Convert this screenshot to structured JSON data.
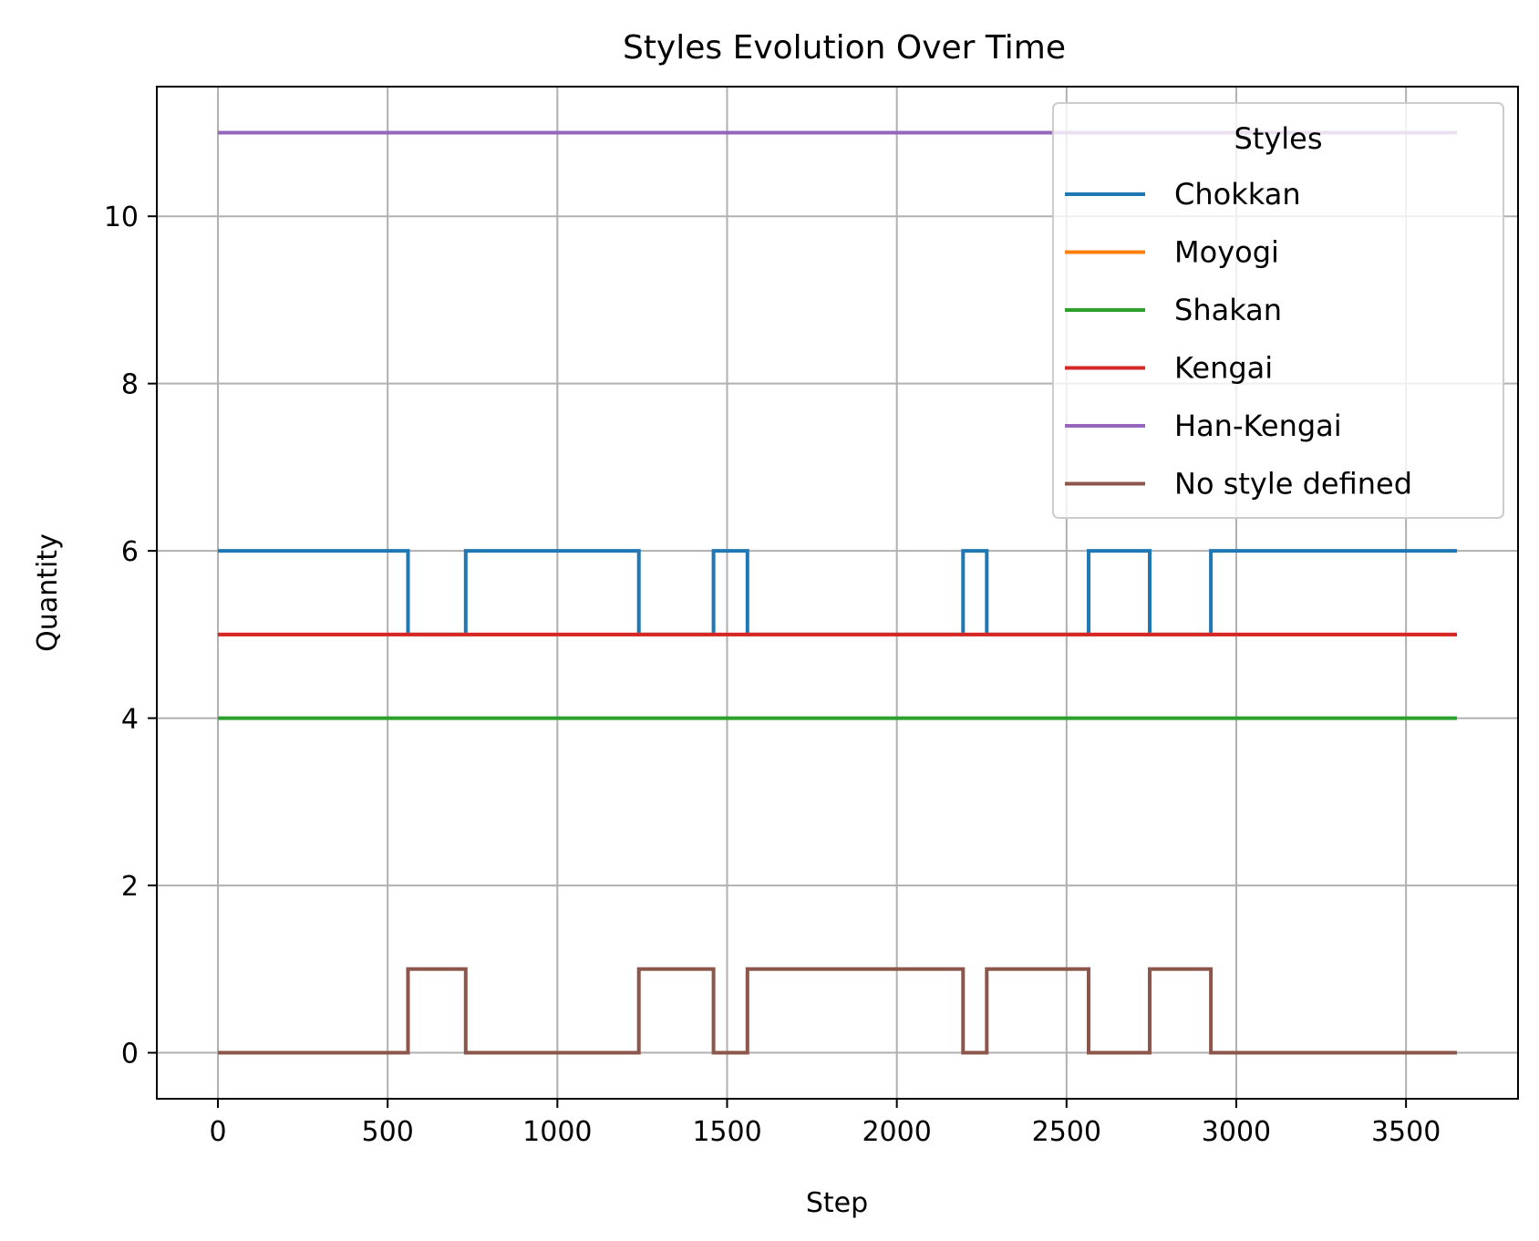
{
  "chart_data": {
    "type": "line",
    "title": "Styles Evolution Over Time",
    "xlabel": "Step",
    "ylabel": "Quantity",
    "xlim": [
      -180,
      3830
    ],
    "ylim": [
      -0.55,
      11.55
    ],
    "xticks": [
      0,
      500,
      1000,
      1500,
      2000,
      2500,
      3000,
      3500
    ],
    "yticks": [
      0,
      2,
      4,
      6,
      8,
      10
    ],
    "grid": true,
    "legend": {
      "title": "Styles",
      "placement": "top-right"
    },
    "step_style": "post",
    "series": [
      {
        "name": "Chokkan",
        "color": "#1f77b4",
        "points": [
          [
            0,
            6
          ],
          [
            560,
            5
          ],
          [
            730,
            6
          ],
          [
            1240,
            5
          ],
          [
            1460,
            6
          ],
          [
            1560,
            5
          ],
          [
            2195,
            6
          ],
          [
            2265,
            5
          ],
          [
            2565,
            6
          ],
          [
            2745,
            5
          ],
          [
            2925,
            6
          ],
          [
            3650,
            6
          ]
        ]
      },
      {
        "name": "Moyogi",
        "color": "#ff7f0e",
        "points": [
          [
            0,
            5
          ],
          [
            3650,
            5
          ]
        ]
      },
      {
        "name": "Shakan",
        "color": "#2ca02c",
        "points": [
          [
            0,
            4
          ],
          [
            3650,
            4
          ]
        ]
      },
      {
        "name": "Kengai",
        "color": "#d62728",
        "points": [
          [
            0,
            5
          ],
          [
            3650,
            5
          ]
        ]
      },
      {
        "name": "Han-Kengai",
        "color": "#9467bd",
        "points": [
          [
            0,
            11
          ],
          [
            3650,
            11
          ]
        ]
      },
      {
        "name": "No style defined",
        "color": "#8c564b",
        "points": [
          [
            0,
            0
          ],
          [
            560,
            1
          ],
          [
            730,
            0
          ],
          [
            1240,
            1
          ],
          [
            1460,
            0
          ],
          [
            1560,
            1
          ],
          [
            2195,
            0
          ],
          [
            2265,
            1
          ],
          [
            2565,
            0
          ],
          [
            2745,
            1
          ],
          [
            2925,
            0
          ],
          [
            3650,
            0
          ]
        ]
      }
    ]
  }
}
